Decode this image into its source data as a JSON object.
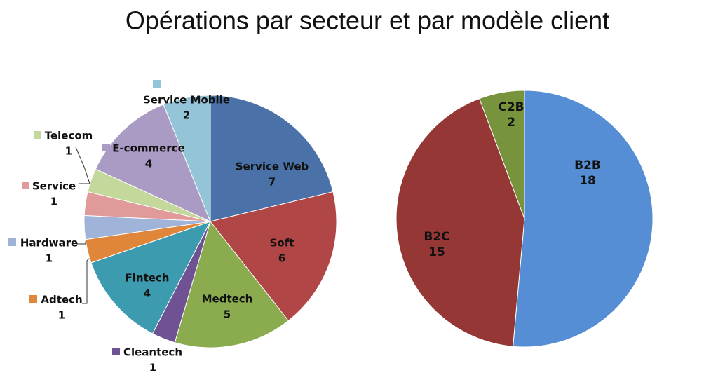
{
  "title": "Opérations par secteur et par modèle client",
  "chart_data": [
    {
      "type": "pie",
      "categories": [
        "Service Web",
        "Soft",
        "Medtech",
        "Cleantech",
        "Fintech",
        "Adtech",
        "Hardware",
        "Service",
        "Telecom",
        "E-commerce",
        "Service Mobile"
      ],
      "values": [
        7,
        6,
        5,
        1,
        4,
        1,
        1,
        1,
        1,
        4,
        2
      ],
      "colors": [
        "#4a72a8",
        "#b04646",
        "#8aab4e",
        "#6e5294",
        "#3d9bb0",
        "#e0863a",
        "#9fb4d8",
        "#e09a9a",
        "#c3d89a",
        "#a99bc3",
        "#93c4d8"
      ]
    },
    {
      "type": "pie",
      "categories": [
        "B2B",
        "B2C",
        "C2B"
      ],
      "values": [
        18,
        15,
        2
      ],
      "colors": [
        "#558ed5",
        "#953735",
        "#77933c"
      ]
    }
  ]
}
